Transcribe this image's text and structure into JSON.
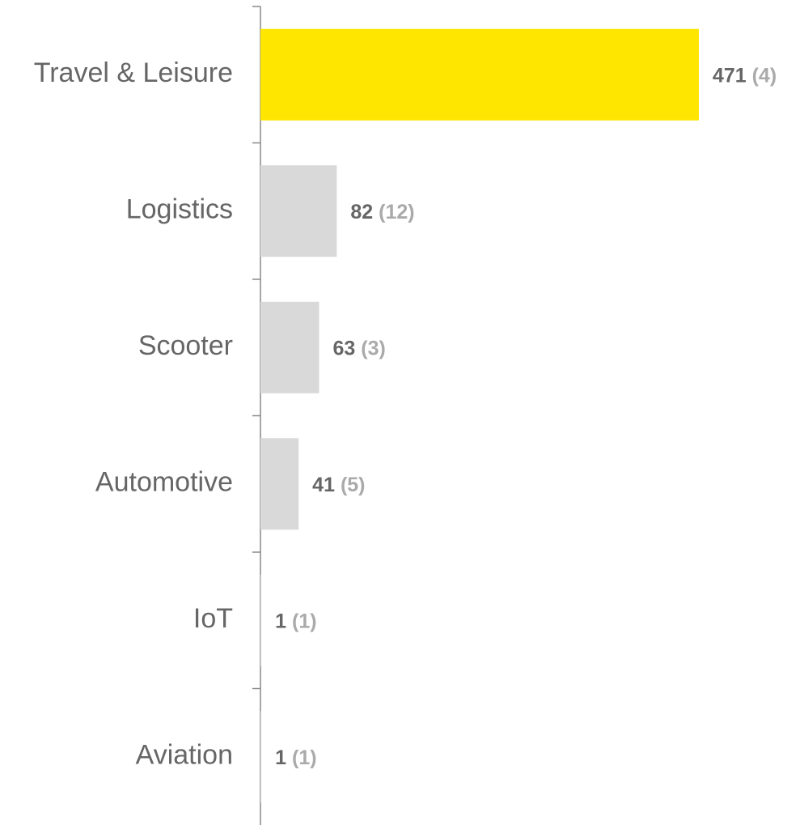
{
  "chart_data": {
    "type": "bar",
    "orientation": "horizontal",
    "categories": [
      "Travel & Leisure",
      "Logistics",
      "Scooter",
      "Automotive",
      "IoT",
      "Aviation"
    ],
    "values": [
      471,
      82,
      63,
      41,
      1,
      1
    ],
    "value_labels": [
      "471 (4)",
      "82 (12)",
      "63 (3)",
      "41 (5)",
      "1 (1)",
      "1 (1)"
    ],
    "colors": [
      "#FFE600",
      "#D9D9D9",
      "#D9D9D9",
      "#D9D9D9",
      "#D9D9D9",
      "#D9D9D9"
    ]
  }
}
